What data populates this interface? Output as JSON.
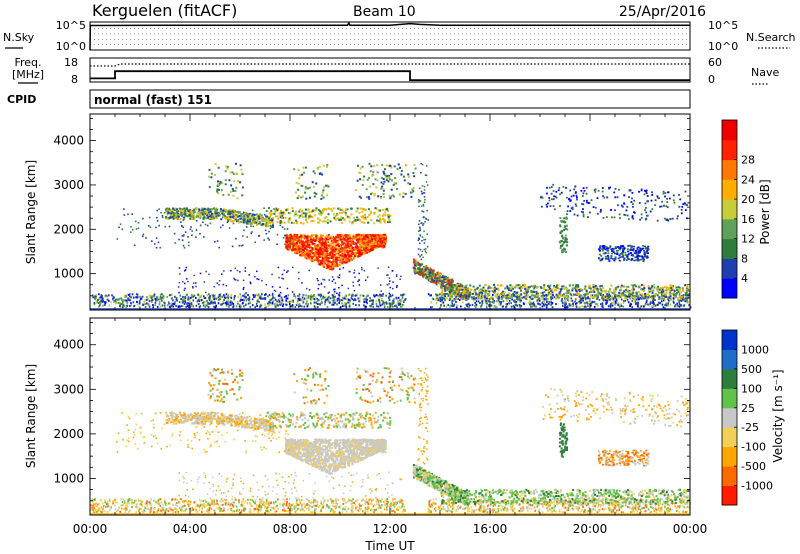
{
  "header": {
    "station": "Kerguelen (fitACF)",
    "beam": "Beam 10",
    "date": "25/Apr/2016"
  },
  "strip_labels": {
    "nsky": "N.Sky",
    "nsearch": "N.Search",
    "freq_line1": "Freq.",
    "freq_line2": "[MHz]",
    "nave": "Nave",
    "cpid": "CPID",
    "cpid_value": "normal (fast) 151"
  },
  "colors": {
    "power_scale": [
      "#0000ff",
      "#1f3fb0",
      "#2e7d3e",
      "#5fa05a",
      "#c6cc3a",
      "#ffae00",
      "#ff7800",
      "#ff2200",
      "#ee0000"
    ],
    "velocity_scale": [
      "#0033cc",
      "#1e6fc8",
      "#2e7d3e",
      "#5fc24a",
      "#c8c8c8",
      "#f2cf55",
      "#ffa500",
      "#ff6a00",
      "#ff1a00"
    ]
  },
  "chart_data": [
    {
      "type": "line",
      "name": "noise-panel",
      "left_ticks": [
        "10^5",
        "10^0"
      ],
      "right_ticks": [
        "10^5",
        "10^0"
      ],
      "series": [
        {
          "x": [
            0,
            0.01,
            0.02,
            3,
            6,
            9,
            10.3,
            10.35,
            10.4,
            12,
            12.8,
            13.2,
            14,
            18,
            22,
            24
          ],
          "y": [
            0,
            4.6,
            4.55,
            4.6,
            4.6,
            4.6,
            4.6,
            5.0,
            4.6,
            4.6,
            4.9,
            4.75,
            4.6,
            4.6,
            4.6,
            4.6
          ]
        }
      ]
    },
    {
      "type": "line",
      "name": "freq-nave-panel",
      "left_ticks": [
        "18",
        "8"
      ],
      "right_ticks": [
        "60",
        "0"
      ],
      "series": [
        {
          "x": [
            0,
            1,
            1,
            12.8,
            12.8,
            24
          ],
          "y": [
            9.5,
            9.5,
            12.5,
            12.5,
            8.8,
            8.8
          ]
        },
        {
          "x": [
            0,
            1,
            1.2,
            12.8,
            12.8,
            24
          ],
          "y": [
            40,
            40,
            45,
            45,
            45,
            45
          ]
        }
      ]
    },
    {
      "type": "heatmap",
      "name": "power",
      "ylabel": "Slant Range [km]",
      "y_ticks": [
        "1000",
        "2000",
        "3000",
        "4000"
      ],
      "xlim": [
        0,
        24
      ],
      "ylim": [
        180,
        4600
      ],
      "colorbar_label": "Power [dB]",
      "colorbar_ticks": [
        "4",
        "8",
        "12",
        "16",
        "20",
        "24",
        "28"
      ]
    },
    {
      "type": "heatmap",
      "name": "velocity",
      "ylabel": "Slant Range [km]",
      "y_ticks": [
        "1000",
        "2000",
        "3000",
        "4000"
      ],
      "xlim": [
        0,
        24
      ],
      "ylim": [
        180,
        4600
      ],
      "x_ticks": [
        "00:00",
        "04:00",
        "08:00",
        "12:00",
        "16:00",
        "20:00",
        "00:00"
      ],
      "xlabel": "Time UT",
      "colorbar_label": "Velocity [m s⁻¹]",
      "colorbar_ticks": [
        "1000",
        "500",
        "100",
        "25",
        "-25",
        "-100",
        "-500",
        "-1000"
      ]
    }
  ]
}
